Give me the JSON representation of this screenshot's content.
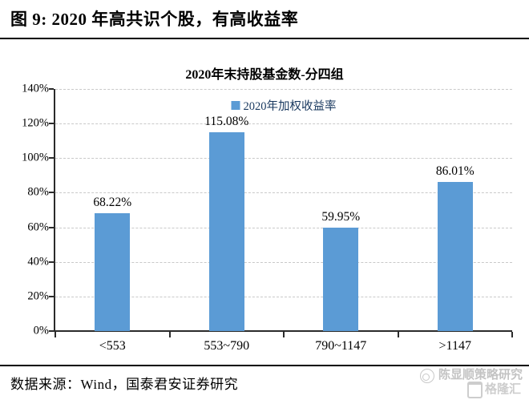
{
  "header": {
    "figure_title": "图 9:  2020 年高共识个股，有高收益率"
  },
  "chart_data": {
    "type": "bar",
    "title": "2020年末持股基金数-分四组",
    "legend": [
      "2020年加权收益率"
    ],
    "legend_position": "top-center-inside",
    "categories": [
      "<553",
      "553~790",
      "790~1147",
      ">1147"
    ],
    "series": [
      {
        "name": "2020年加权收益率",
        "values": [
          68.22,
          115.08,
          59.95,
          86.01
        ]
      }
    ],
    "value_labels": [
      "68.22%",
      "115.08%",
      "59.95%",
      "86.01%"
    ],
    "xlabel": "",
    "ylabel": "",
    "ylim": [
      0,
      140
    ],
    "ytick_step": 20,
    "ytick_labels": [
      "0%",
      "20%",
      "40%",
      "60%",
      "80%",
      "100%",
      "120%",
      "140%"
    ],
    "grid": "horizontal-dashed",
    "bar_color": "#5b9bd5",
    "gridline_color": "#c9c9c9",
    "axis_color": "#2b2b2b"
  },
  "footer": {
    "source": "数据来源：Wind，国泰君安证券研究",
    "watermark_name": "陈显顺策略研究",
    "watermark_logo": "格隆汇"
  }
}
